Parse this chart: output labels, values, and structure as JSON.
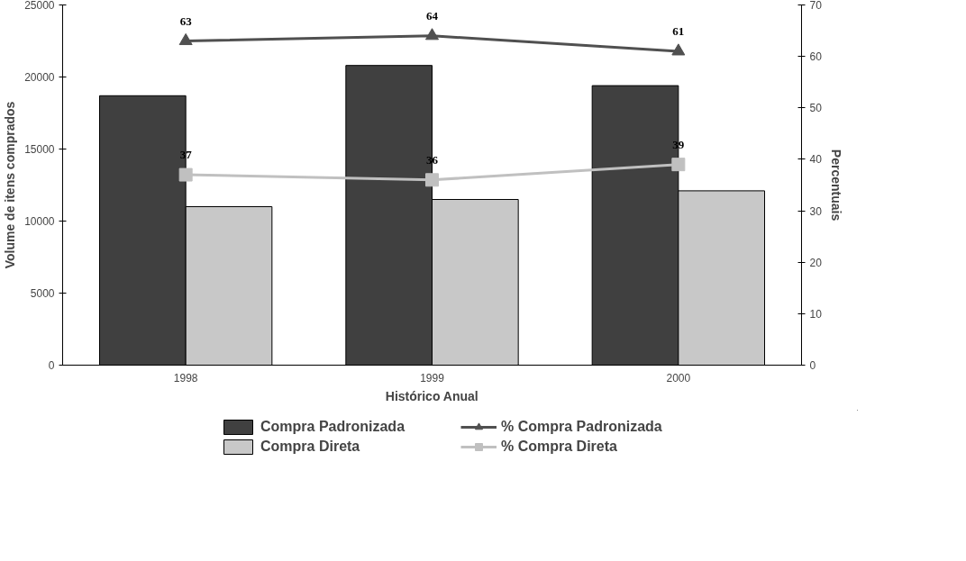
{
  "chart_data": {
    "type": "bar",
    "xlabel": "Histórico Anual",
    "ylabel": "Volume de itens comprados",
    "y2label": "Percentuais",
    "categories": [
      "1998",
      "1999",
      "2000"
    ],
    "series": [
      {
        "name": "Compra Padronizada",
        "color": "#404040",
        "values": [
          18700,
          20800,
          19400
        ]
      },
      {
        "name": "Compra Direta",
        "color": "#c8c8c8",
        "values": [
          11000,
          11500,
          12100
        ]
      },
      {
        "name": "% Compra Padronizada",
        "type": "line",
        "axis": "y2",
        "color": "#505050",
        "marker": "triangle",
        "data_labels": true,
        "values": [
          63,
          64,
          61
        ]
      },
      {
        "name": "% Compra Direta",
        "type": "line",
        "axis": "y2",
        "color": "#c0c0c0",
        "marker": "square",
        "data_labels": true,
        "values": [
          37,
          36,
          39
        ]
      }
    ],
    "ylim": [
      0,
      25000
    ],
    "yticks": [
      0,
      5000,
      10000,
      15000,
      20000,
      25000
    ],
    "y2lim": [
      0,
      70
    ],
    "y2ticks": [
      0,
      10,
      20,
      30,
      40,
      50,
      60,
      70
    ],
    "grid": false,
    "legend": "bottom"
  }
}
